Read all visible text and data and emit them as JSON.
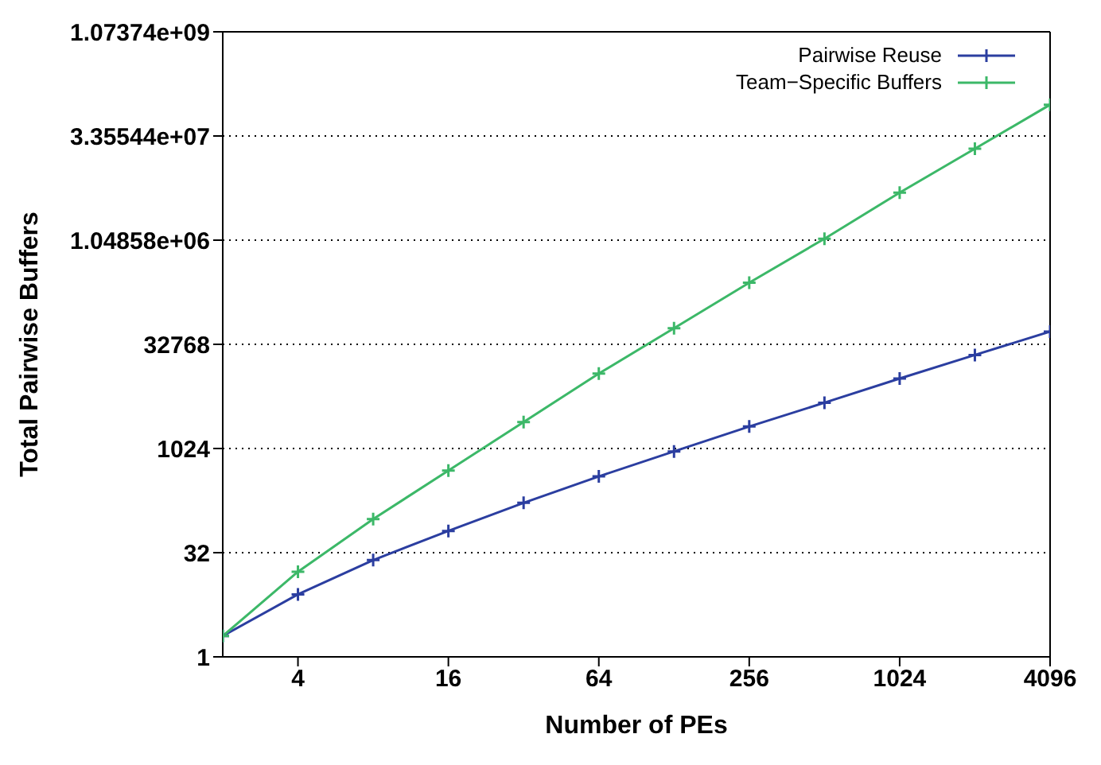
{
  "chart_data": {
    "type": "line",
    "xlabel": "Number of PEs",
    "ylabel": "Total Pairwise Buffers",
    "x": [
      2,
      4,
      8,
      16,
      32,
      64,
      128,
      256,
      512,
      1024,
      2048,
      4096
    ],
    "series": [
      {
        "name": "Pairwise Reuse",
        "color": "#2b3ea0",
        "values": [
          2,
          8,
          25,
          66,
          168,
          405,
          930,
          2130,
          4700,
          10500,
          23000,
          50000
        ]
      },
      {
        "name": "Team−Specific Buffers",
        "color": "#3cb868",
        "values": [
          2,
          17,
          98,
          490,
          2470,
          12400,
          56000,
          255000,
          1100000,
          5100000,
          22000000,
          95000000
        ]
      }
    ],
    "log": "xy",
    "xlim": [
      2,
      4096
    ],
    "xticks": [
      4,
      16,
      64,
      256,
      1024,
      4096
    ],
    "ylim": [
      1,
      1073741824
    ],
    "yticks": [
      1,
      32,
      1024,
      32768,
      {
        "value": 1048576,
        "label": "1.04858e+06"
      },
      {
        "value": 33554432,
        "label": "3.35544e+07"
      },
      {
        "value": 1073741824,
        "label": "1.07374e+09"
      }
    ],
    "grid": "y",
    "legend": "top right",
    "marker": "cross",
    "line_style": "solid"
  }
}
